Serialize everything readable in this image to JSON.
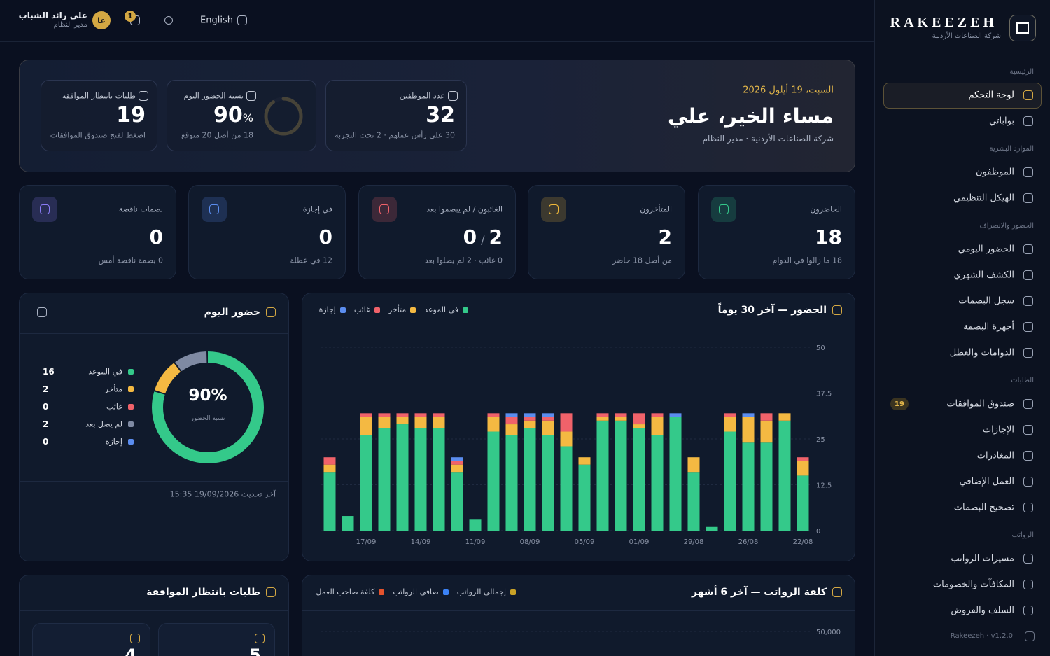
{
  "topbar": {
    "user_name": "علي رائد الشباب",
    "user_role": "مدير النظام",
    "avatar": "عا",
    "notifications": 1,
    "language": "English"
  },
  "sidebar": {
    "brand": "RAKEEZEH",
    "company": "شركة الصناعات الأردنية",
    "sections": [
      {
        "title": "الرئيسية",
        "items": [
          {
            "label": "لوحة التحكم",
            "active": true
          },
          {
            "label": "بواباتي"
          }
        ]
      },
      {
        "title": "الموارد البشرية",
        "items": [
          {
            "label": "الموظفون"
          },
          {
            "label": "الهيكل التنظيمي"
          }
        ]
      },
      {
        "title": "الحضور والانصراف",
        "items": [
          {
            "label": "الحضور اليومي"
          },
          {
            "label": "الكشف الشهري"
          },
          {
            "label": "سجل البصمات"
          },
          {
            "label": "أجهزة البصمة"
          },
          {
            "label": "الدوامات والعطل"
          }
        ]
      },
      {
        "title": "الطلبات",
        "items": [
          {
            "label": "صندوق الموافقات",
            "badge": 19
          },
          {
            "label": "الإجازات"
          },
          {
            "label": "المغادرات"
          },
          {
            "label": "العمل الإضافي"
          },
          {
            "label": "تصحيح البصمات"
          }
        ]
      },
      {
        "title": "الرواتب",
        "items": [
          {
            "label": "مسيرات الرواتب"
          },
          {
            "label": "المكافآت والخصومات"
          },
          {
            "label": "السلف والقروض"
          }
        ]
      }
    ],
    "footer": "Rakeezeh · v1.2.0"
  },
  "hero": {
    "date": "السبت، 19 أيلول 2026",
    "greeting": "مساء الخير، علي",
    "subtitle": "شركة الصناعات الأردنية · مدير النظام",
    "cards": [
      {
        "label": "عدد الموظفين",
        "value": 32,
        "note": "30 على رأس عملهم · 2 تحت التجربة"
      },
      {
        "label": "نسبة الحضور اليوم",
        "value": 90,
        "unit": "%",
        "note": "18 من أصل 20 متوقع"
      },
      {
        "label": "طلبات بانتظار الموافقة",
        "value": 19,
        "note": "اضغط لفتح صندوق الموافقات"
      }
    ]
  },
  "stats": [
    {
      "label": "الحاضرون",
      "value": 18,
      "note": "18 ما زالوا في الدوام",
      "color": "#34c98a"
    },
    {
      "label": "المتأخرون",
      "value": 2,
      "note": "من أصل 18 حاضر",
      "color": "#f0b93a"
    },
    {
      "label": "الغائبون / لم يبصموا بعد",
      "values": [
        0,
        2
      ],
      "separator": "/",
      "note": "0 غائب · 2 لم يصلوا بعد",
      "color": "#f0626a"
    },
    {
      "label": "في إجازة",
      "value": 0,
      "note": "12 في عطلة",
      "color": "#5b8def"
    },
    {
      "label": "بصمات ناقصة",
      "value": 0,
      "note": "0 بصمة ناقصة أمس",
      "color": "#8b7cf6"
    }
  ],
  "today": {
    "title": "حضور اليوم",
    "items": [
      {
        "label": "في الموعد",
        "value": 16,
        "color": "#34c98a"
      },
      {
        "label": "متأخر",
        "value": 2,
        "color": "#f4b942"
      },
      {
        "label": "غائب",
        "value": 0,
        "color": "#f0626a"
      },
      {
        "label": "لم يصل بعد",
        "value": 2,
        "color": "#7f8aa3"
      },
      {
        "label": "إجازة",
        "value": 0,
        "color": "#5b8def"
      }
    ],
    "center_value": 90,
    "center_unit": "%",
    "center_label": "نسبة الحضور",
    "updated": "آخر تحديث 19/09/2026 15:35"
  },
  "chart_data": [
    {
      "type": "bar",
      "stacked": true,
      "title": "الحضور — آخر 30 يوماً",
      "categories": [
        null,
        null,
        "17/09",
        null,
        null,
        "14/09",
        null,
        null,
        "11/09",
        null,
        null,
        "08/09",
        null,
        null,
        "05/09",
        null,
        null,
        "01/09",
        null,
        null,
        "29/08",
        null,
        null,
        "26/08",
        null,
        null,
        "22/08"
      ],
      "series": [
        {
          "name": "في الموعد",
          "color": "#34c98a",
          "values": [
            16,
            4,
            26,
            28,
            29,
            28,
            28,
            16,
            3,
            27,
            26,
            28,
            26,
            23,
            18,
            30,
            30,
            28,
            26,
            31,
            16,
            1,
            27,
            24,
            24,
            30,
            15
          ]
        },
        {
          "name": "متأخر",
          "color": "#f4b942",
          "values": [
            2,
            0,
            5,
            3,
            2,
            3,
            3,
            2,
            0,
            4,
            3,
            2,
            4,
            4,
            2,
            1,
            1,
            1,
            5,
            0,
            4,
            0,
            4,
            7,
            6,
            2,
            4
          ]
        },
        {
          "name": "غائب",
          "color": "#f0626a",
          "values": [
            2,
            0,
            1,
            1,
            1,
            1,
            1,
            1,
            0,
            1,
            2,
            1,
            1,
            5,
            0,
            1,
            1,
            3,
            1,
            0,
            0,
            0,
            1,
            0,
            2,
            0,
            1
          ]
        },
        {
          "name": "إجازة",
          "color": "#5b8def",
          "values": [
            0,
            0,
            0,
            0,
            0,
            0,
            0,
            1,
            0,
            0,
            1,
            1,
            1,
            0,
            0,
            0,
            0,
            0,
            0,
            1,
            0,
            0,
            0,
            1,
            0,
            0,
            0
          ]
        }
      ],
      "ylim": [
        0,
        50
      ],
      "yticks": [
        0,
        12.5,
        25,
        37.5,
        50
      ],
      "grid": true
    },
    {
      "type": "bar",
      "title": "كلفة الرواتب — آخر 6 أشهر",
      "series": [
        {
          "name": "إجمالي الرواتب",
          "color": "#c9a227"
        },
        {
          "name": "صافي الرواتب",
          "color": "#3b82f6"
        },
        {
          "name": "كلفة صاحب العمل",
          "color": "#e5532d"
        }
      ],
      "ylim": [
        0,
        50000
      ],
      "yticks": [
        {
          "value": 50000,
          "label": "50,000"
        }
      ],
      "grid": true
    }
  ],
  "approvals": {
    "title": "طلبات بانتظار الموافقة",
    "cards": [
      {
        "value": 5
      },
      {
        "value": 4
      }
    ]
  }
}
